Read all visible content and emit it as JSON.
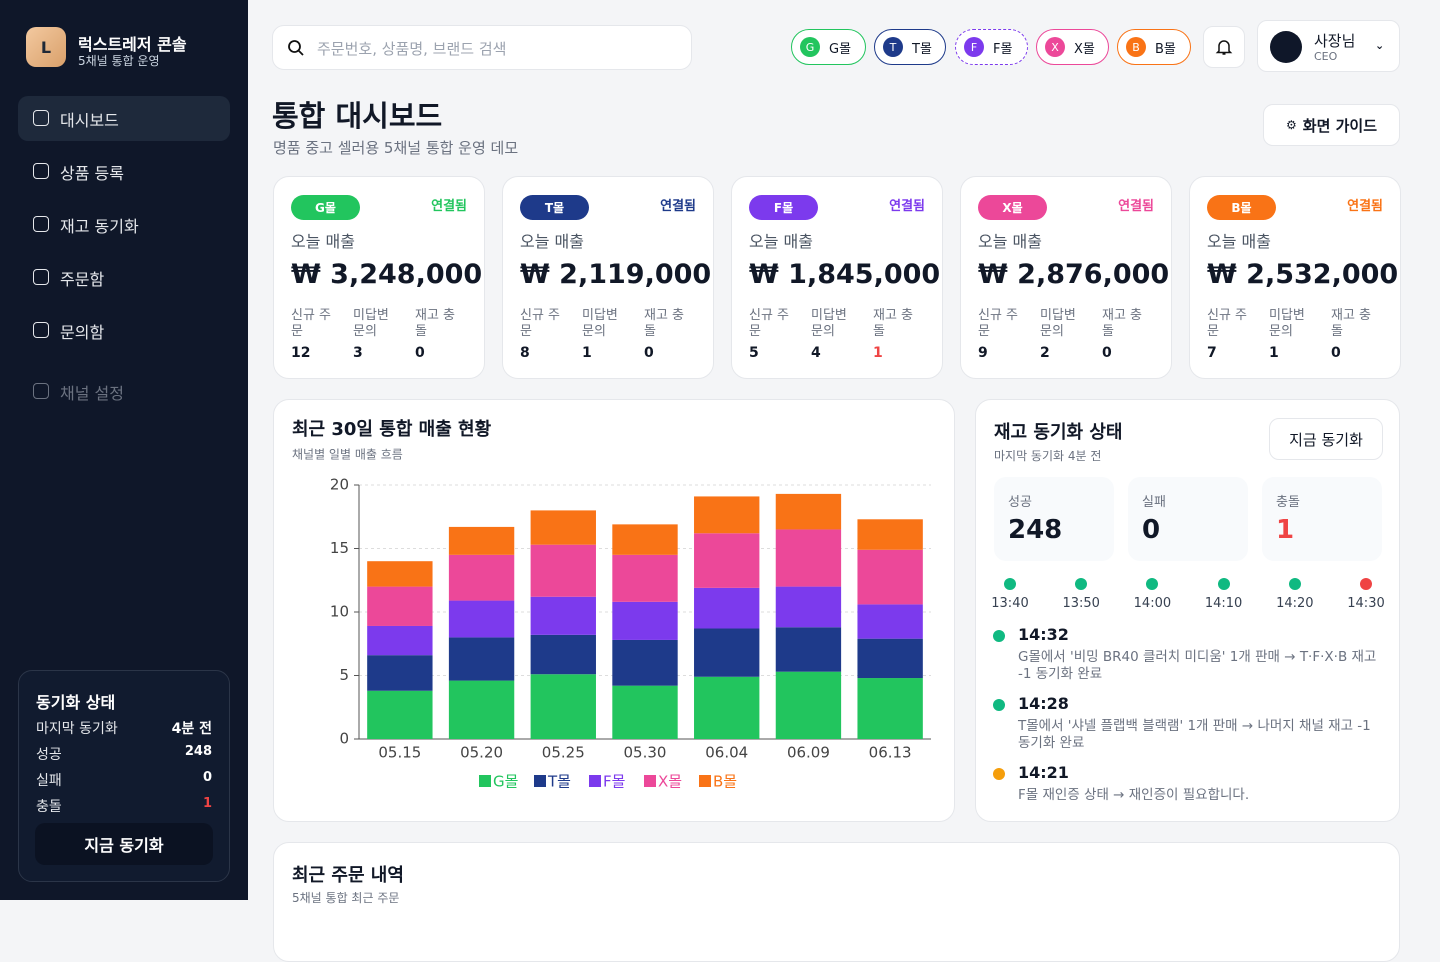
{
  "sidebar": {
    "logo": "L",
    "brand": "럭스트레저 콘솔",
    "brand_sub": "5채널 통합 운영",
    "nav": [
      "대시보드",
      "상품 등록",
      "재고 동기화",
      "주문함",
      "문의함",
      "채널 설정"
    ],
    "sync": {
      "title": "동기화 상태",
      "rows": [
        {
          "label": "마지막 동기화",
          "value": "4분 전"
        },
        {
          "label": "성공",
          "value": 248
        },
        {
          "label": "실패",
          "value": 0
        },
        {
          "label": "충돌",
          "value": 1,
          "color": "#ef4444"
        }
      ],
      "button": "지금 동기화"
    }
  },
  "header": {
    "search": "주문번호, 상품명, 브랜드 검색",
    "channels": [
      {
        "badge": "G",
        "name": "G몰",
        "color": "#22c55e"
      },
      {
        "badge": "T",
        "name": "T몰",
        "color": "#1e3a8a"
      },
      {
        "badge": "F",
        "name": "F몰",
        "color": "#7c3aed"
      },
      {
        "badge": "X",
        "name": "X몰",
        "color": "#ec4899"
      },
      {
        "badge": "B",
        "name": "B몰",
        "color": "#f97316"
      }
    ],
    "user": {
      "name": "사장님",
      "role": "CEO"
    }
  },
  "page": {
    "title": "통합 대시보드",
    "subtitle": "명품 중고 셀러용 5채널 통합 운영 데모",
    "guide": "화면 가이드"
  },
  "channel_cards": {
    "sales_label": "오늘 매출",
    "status": "연결됨",
    "metric_labels": [
      "신규 주문",
      "미답변 문의",
      "재고 충돌"
    ],
    "cards": [
      {
        "sales": "₩ 3,248,000",
        "metrics": [
          12,
          3,
          0
        ]
      },
      {
        "sales": "₩ 2,119,000",
        "metrics": [
          8,
          1,
          0
        ]
      },
      {
        "sales": "₩ 1,845,000",
        "metrics": [
          5,
          4,
          1
        ]
      },
      {
        "sales": "₩ 2,876,000",
        "metrics": [
          9,
          2,
          0
        ]
      },
      {
        "sales": "₩ 2,532,000",
        "metrics": [
          7,
          1,
          0
        ]
      }
    ]
  },
  "chart_data": {
    "type": "stacked_bar",
    "title": "최근 30일 통합 매출 현황",
    "subtitle": "채널별 일별 매출 흐름",
    "categories": [
      "05.15",
      "05.20",
      "05.25",
      "05.30",
      "06.04",
      "06.09",
      "06.13"
    ],
    "series": [
      {
        "name": "G몰",
        "color": "#22c55e",
        "values": [
          3.8,
          4.6,
          5.1,
          4.2,
          4.9,
          5.3,
          4.8
        ]
      },
      {
        "name": "T몰",
        "color": "#1e3a8a",
        "values": [
          2.8,
          3.4,
          3.1,
          3.6,
          3.8,
          3.5,
          3.1
        ]
      },
      {
        "name": "F몰",
        "color": "#7c3aed",
        "values": [
          2.3,
          2.9,
          3.0,
          3.0,
          3.2,
          3.2,
          2.7
        ]
      },
      {
        "name": "X몰",
        "color": "#ec4899",
        "values": [
          3.1,
          3.6,
          4.1,
          3.7,
          4.3,
          4.5,
          4.3
        ]
      },
      {
        "name": "B몰",
        "color": "#f97316",
        "values": [
          2.0,
          2.2,
          2.7,
          2.4,
          2.9,
          2.8,
          2.4
        ]
      }
    ],
    "ylim": [
      0,
      20
    ],
    "yticks": [
      0,
      5,
      10,
      15,
      20
    ],
    "grid": true
  },
  "sync_status": {
    "title": "재고 동기화 상태",
    "subtitle": "마지막 동기화 4분 전",
    "button": "지금 동기화",
    "stats": [
      {
        "label": "성공",
        "value": 248,
        "color": "#111827"
      },
      {
        "label": "실패",
        "value": 0,
        "color": "#111827"
      },
      {
        "label": "충돌",
        "value": 1,
        "color": "#ef4444"
      }
    ],
    "timeline": [
      {
        "time": "13:40",
        "color": "#10b981"
      },
      {
        "time": "13:50",
        "color": "#10b981"
      },
      {
        "time": "14:00",
        "color": "#10b981"
      },
      {
        "time": "14:10",
        "color": "#10b981"
      },
      {
        "time": "14:20",
        "color": "#10b981"
      },
      {
        "time": "14:30",
        "color": "#ef4444"
      }
    ],
    "log": [
      {
        "time": "14:32",
        "text": "G몰에서 '비밍 BR40 클러치 미디움' 1개 판매 → T·F·X·B 재고 -1 동기화 완료",
        "color": "#10b981"
      },
      {
        "time": "14:28",
        "text": "T몰에서 '샤넬 플랩백 블랙램' 1개 판매 → 나머지 채널 재고 -1 동기화 완료",
        "color": "#10b981"
      },
      {
        "time": "14:21",
        "text": "F몰 재인증 상태 → 재인증이 필요합니다.",
        "color": "#f59e0b"
      }
    ]
  },
  "orders": {
    "title": "최근 주문 내역",
    "subtitle": "5채널 통합 최근 주문"
  }
}
